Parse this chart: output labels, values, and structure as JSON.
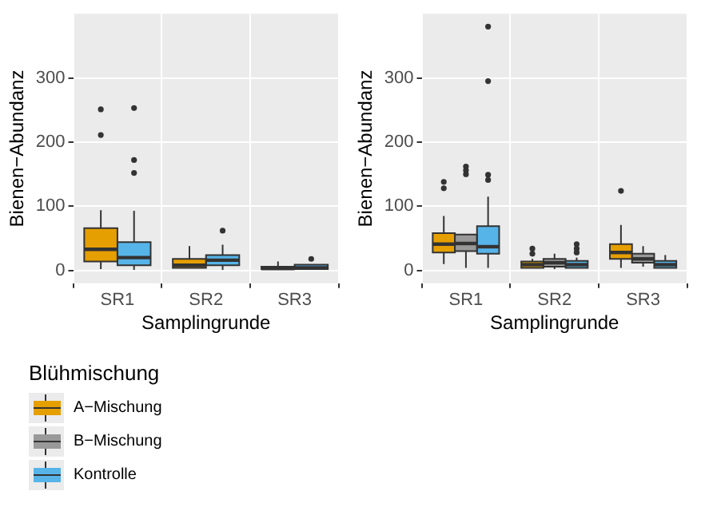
{
  "chart_data": [
    {
      "type": "box",
      "categories": [
        "SR1",
        "SR2",
        "SR3"
      ],
      "xlabel": "Samplingrunde",
      "ylabel": "Bienen−Abundanz",
      "ylim": [
        -20,
        400
      ],
      "yticks": [
        0,
        100,
        200,
        300
      ],
      "grid": true,
      "series": [
        {
          "color": "#e69f00",
          "boxes": [
            {
              "low": 2,
              "q1": 14,
              "median": 33,
              "q3": 66,
              "high": 94,
              "outliers": [
                211,
                251
              ]
            },
            {
              "low": 1,
              "q1": 4,
              "median": 8,
              "q3": 18,
              "high": 38
            },
            {
              "low": 0,
              "q1": 2,
              "median": 3,
              "q3": 6,
              "high": 14
            }
          ]
        },
        {
          "color": "#56b4e9",
          "boxes": [
            {
              "low": 1,
              "q1": 8,
              "median": 20,
              "q3": 44,
              "high": 93,
              "outliers": [
                152,
                172,
                253
              ]
            },
            {
              "low": 1,
              "q1": 8,
              "median": 16,
              "q3": 24,
              "high": 40,
              "outliers": [
                62
              ]
            },
            {
              "low": 0,
              "q1": 2,
              "median": 4,
              "q3": 9,
              "high": 10,
              "outliers": [
                18
              ]
            }
          ]
        }
      ]
    },
    {
      "type": "box",
      "categories": [
        "SR1",
        "SR2",
        "SR3"
      ],
      "xlabel": "Samplingrunde",
      "ylabel": "Bienen−Abundanz",
      "ylim": [
        -20,
        400
      ],
      "yticks": [
        0,
        100,
        200,
        300
      ],
      "grid": true,
      "legend": "bottom",
      "legend_title": "Blühmischung",
      "series": [
        {
          "name": "A−Mischung",
          "color": "#e69f00",
          "boxes": [
            {
              "low": 10,
              "q1": 28,
              "median": 41,
              "q3": 58,
              "high": 85,
              "outliers": [
                128,
                138
              ]
            },
            {
              "low": 1,
              "q1": 4,
              "median": 9,
              "q3": 14,
              "high": 18,
              "outliers": [
                26,
                34
              ]
            },
            {
              "low": 4,
              "q1": 18,
              "median": 28,
              "q3": 41,
              "high": 71,
              "outliers": [
                124
              ]
            }
          ]
        },
        {
          "name": "B−Mischung",
          "color": "#999999",
          "boxes": [
            {
              "low": 4,
              "q1": 30,
              "median": 42,
              "q3": 56,
              "high": 58,
              "outliers": [
                150,
                156,
                162
              ]
            },
            {
              "low": 2,
              "q1": 6,
              "median": 12,
              "q3": 18,
              "high": 26
            },
            {
              "low": 6,
              "q1": 12,
              "median": 18,
              "q3": 26,
              "high": 38
            }
          ]
        },
        {
          "name": "Kontrolle",
          "color": "#56b4e9",
          "boxes": [
            {
              "low": 4,
              "q1": 26,
              "median": 37,
              "q3": 69,
              "high": 115,
              "outliers": [
                141,
                149,
                295,
                380
              ]
            },
            {
              "low": 1,
              "q1": 4,
              "median": 9,
              "q3": 15,
              "high": 20,
              "outliers": [
                28,
                34,
                41
              ]
            },
            {
              "low": 2,
              "q1": 4,
              "median": 9,
              "q3": 15,
              "high": 24
            }
          ]
        }
      ]
    }
  ]
}
